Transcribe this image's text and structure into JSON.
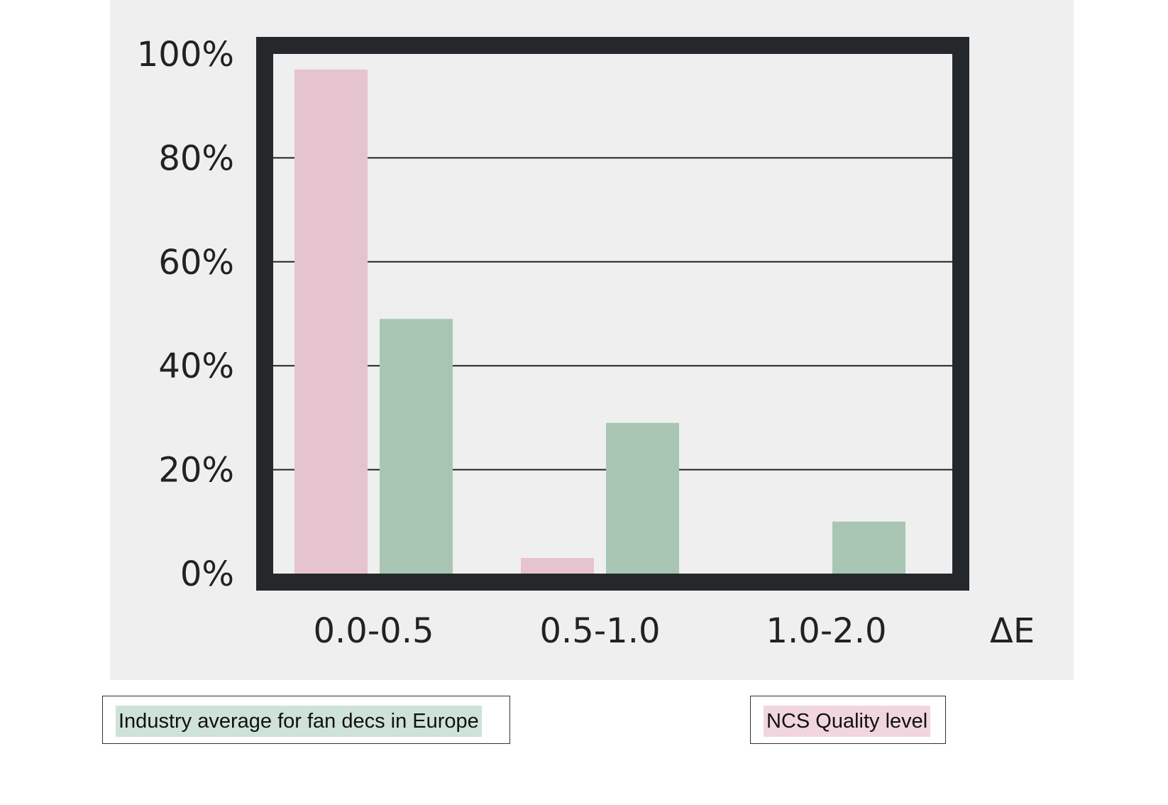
{
  "chart_data": {
    "type": "bar",
    "categories": [
      "0.0-0.5",
      "0.5-1.0",
      "1.0-2.0"
    ],
    "xlabel": "ΔE",
    "ylabel": "",
    "title": "",
    "ylim": [
      0,
      100
    ],
    "yticks": [
      "0%",
      "20%",
      "40%",
      "60%",
      "80%",
      "100%"
    ],
    "grid": true,
    "series": [
      {
        "name": "NCS Quality level",
        "color": "#e5c3cf",
        "values": [
          97,
          3,
          0
        ]
      },
      {
        "name": "Industry average for fan decs in Europe",
        "color": "#a8c6b3",
        "values": [
          49,
          29,
          10
        ]
      }
    ],
    "legend": {
      "placement": "bottom",
      "industry_label": "Industry average for fan decs in Europe",
      "industry_color": "#cfe2d7",
      "ncs_label": "NCS Quality level",
      "ncs_color": "#f1d6df"
    }
  }
}
